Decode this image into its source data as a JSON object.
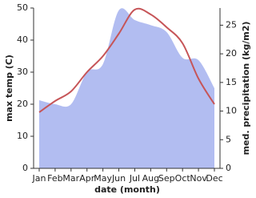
{
  "chart_data": {
    "type": "line-area",
    "categories": [
      "Jan",
      "Feb",
      "Mar",
      "Apr",
      "May",
      "Jun",
      "Jul",
      "Aug",
      "Sep",
      "Oct",
      "Nov",
      "Dec"
    ],
    "x_label": "date (month)",
    "y_label": "max temp (C)",
    "y2_label": "med. precipitation (kg/m2)",
    "ylim": [
      0,
      50
    ],
    "yticks": [
      0,
      10,
      20,
      30,
      40,
      50
    ],
    "y2lim": [
      0,
      28
    ],
    "y2ticks": [
      0,
      5,
      10,
      15,
      20,
      25
    ],
    "series": [
      {
        "name": "max temp",
        "kind": "line",
        "color": "#c65558",
        "values": [
          17.5,
          21,
          24,
          30,
          35,
          42,
          49.5,
          48,
          44,
          39,
          28,
          20
        ]
      },
      {
        "name": "med. precipitation",
        "kind": "area",
        "axis": "y2",
        "color": "#b2bdf1",
        "values": [
          11.9,
          11.2,
          11.2,
          16.8,
          18.2,
          27.6,
          25.9,
          25,
          23.8,
          19.3,
          18.9,
          14
        ]
      }
    ]
  }
}
